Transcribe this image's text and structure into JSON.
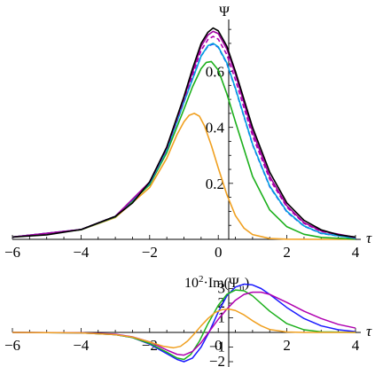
{
  "chart_data": [
    {
      "type": "line",
      "ylabel": "Ψ",
      "xlabel": "τ",
      "xlim": [
        -6,
        4
      ],
      "ylim": [
        0,
        0.78
      ],
      "x_ticks": [
        "−6",
        "−4",
        "−2",
        "0",
        "2",
        "4"
      ],
      "x_tick_values": [
        -6,
        -4,
        -2,
        0,
        2,
        4
      ],
      "y_ticks": [
        "0.2",
        "0.4",
        "0.6"
      ],
      "y_tick_values": [
        0.2,
        0.4,
        0.6
      ],
      "grid": false,
      "series": [
        {
          "color": "#000000",
          "style": "solid",
          "x": [
            -6,
            -5,
            -4,
            -3,
            -2.5,
            -2,
            -1.5,
            -1,
            -0.75,
            -0.5,
            -0.3,
            -0.15,
            0,
            0.25,
            0.5,
            1,
            1.5,
            2,
            2.5,
            3,
            3.5,
            4
          ],
          "y": [
            0.008,
            0.016,
            0.035,
            0.082,
            0.13,
            0.205,
            0.33,
            0.51,
            0.61,
            0.7,
            0.74,
            0.755,
            0.745,
            0.69,
            0.6,
            0.4,
            0.24,
            0.13,
            0.068,
            0.034,
            0.016,
            0.008
          ]
        },
        {
          "color": "#a000a0",
          "style": "solid",
          "x": [
            -6,
            -4,
            -3,
            -2,
            -1.5,
            -1,
            -0.5,
            -0.3,
            -0.15,
            0,
            0.25,
            0.5,
            1,
            1.5,
            2,
            2.5,
            3,
            4
          ],
          "y": [
            0.008,
            0.035,
            0.082,
            0.205,
            0.33,
            0.505,
            0.69,
            0.73,
            0.743,
            0.735,
            0.68,
            0.59,
            0.385,
            0.225,
            0.12,
            0.06,
            0.03,
            0.007
          ]
        },
        {
          "color": "#b000b0",
          "style": "dashed",
          "x": [
            -6,
            -4,
            -3,
            -2,
            -1.5,
            -1,
            -0.5,
            -0.3,
            -0.15,
            0,
            0.25,
            0.5,
            1,
            1.5,
            2,
            2.5,
            3,
            4
          ],
          "y": [
            0.008,
            0.035,
            0.082,
            0.204,
            0.325,
            0.5,
            0.675,
            0.714,
            0.725,
            0.715,
            0.66,
            0.57,
            0.37,
            0.215,
            0.115,
            0.057,
            0.028,
            0.006
          ]
        },
        {
          "color": "#00a0e0",
          "style": "solid",
          "x": [
            -6,
            -4,
            -3,
            -2,
            -1.5,
            -1,
            -0.5,
            -0.3,
            -0.15,
            0,
            0.25,
            0.5,
            1,
            1.5,
            2,
            2.5,
            3,
            4
          ],
          "y": [
            0.008,
            0.035,
            0.082,
            0.2,
            0.32,
            0.49,
            0.655,
            0.692,
            0.7,
            0.688,
            0.63,
            0.54,
            0.34,
            0.19,
            0.1,
            0.048,
            0.022,
            0.004
          ]
        },
        {
          "color": "#1a1aff",
          "style": "dashed",
          "x": [
            -6,
            -4,
            -3,
            -2,
            -1.5,
            -1,
            -0.5,
            -0.3,
            -0.15,
            0,
            0.25,
            0.5,
            1,
            1.5,
            2,
            2.5,
            3,
            4
          ],
          "y": [
            0.008,
            0.035,
            0.082,
            0.2,
            0.32,
            0.49,
            0.655,
            0.69,
            0.698,
            0.686,
            0.628,
            0.538,
            0.338,
            0.188,
            0.098,
            0.047,
            0.021,
            0.004
          ]
        },
        {
          "color": "#1cb01c",
          "style": "solid",
          "x": [
            -6,
            -4,
            -3,
            -2,
            -1.5,
            -1,
            -0.75,
            -0.5,
            -0.35,
            -0.2,
            0,
            0.25,
            0.5,
            1,
            1.5,
            2,
            2.5,
            3,
            4
          ],
          "y": [
            0.008,
            0.034,
            0.08,
            0.195,
            0.31,
            0.465,
            0.545,
            0.61,
            0.632,
            0.635,
            0.605,
            0.52,
            0.42,
            0.225,
            0.105,
            0.045,
            0.018,
            0.007,
            0.001
          ]
        },
        {
          "color": "#f0a020",
          "style": "solid",
          "x": [
            -6,
            -4,
            -3,
            -2,
            -1.5,
            -1.2,
            -1,
            -0.85,
            -0.7,
            -0.55,
            -0.4,
            -0.2,
            0,
            0.25,
            0.5,
            0.75,
            1,
            1.5,
            2,
            3,
            4
          ],
          "y": [
            0.008,
            0.034,
            0.078,
            0.185,
            0.29,
            0.375,
            0.42,
            0.443,
            0.45,
            0.44,
            0.405,
            0.335,
            0.255,
            0.16,
            0.085,
            0.04,
            0.017,
            0.003,
            0.0005,
            0,
            0
          ]
        }
      ]
    },
    {
      "type": "line",
      "ylabel_parts": {
        "a": "10",
        "b": "2",
        "c": "·Im(Ψ",
        "d": "ii",
        "e": ")"
      },
      "xlabel": "τ",
      "xlim": [
        -6,
        4
      ],
      "ylim": [
        -2.5,
        3.6
      ],
      "x_ticks": [
        "−6",
        "−4",
        "−2",
        "0",
        "2",
        "4"
      ],
      "x_tick_values": [
        -6,
        -4,
        -2,
        0,
        2,
        4
      ],
      "y_ticks": [
        "3",
        "2",
        "1",
        "−1",
        "−2"
      ],
      "y_tick_values": [
        3,
        2,
        1,
        -1,
        -2
      ],
      "grid": false,
      "series": [
        {
          "color": "#1a1aff",
          "style": "solid",
          "x": [
            -6,
            -4,
            -3,
            -2.5,
            -2,
            -1.5,
            -1.2,
            -1,
            -0.75,
            -0.5,
            -0.25,
            0,
            0.25,
            0.5,
            0.75,
            1,
            1.25,
            1.5,
            2,
            2.5,
            3,
            3.5,
            4
          ],
          "y": [
            0,
            -0.03,
            -0.15,
            -0.35,
            -0.8,
            -1.45,
            -1.85,
            -2.0,
            -1.75,
            -1.0,
            0.1,
            1.4,
            2.5,
            3.1,
            3.3,
            3.25,
            3.0,
            2.6,
            1.7,
            0.95,
            0.45,
            0.18,
            0.05
          ]
        },
        {
          "color": "#1cb01c",
          "style": "solid",
          "x": [
            -6,
            -4,
            -3,
            -2.5,
            -2,
            -1.5,
            -1.2,
            -1,
            -0.8,
            -0.55,
            -0.3,
            0,
            0.25,
            0.5,
            0.75,
            1,
            1.5,
            2,
            2.5,
            3,
            4
          ],
          "y": [
            0,
            -0.03,
            -0.15,
            -0.35,
            -0.75,
            -1.35,
            -1.75,
            -1.85,
            -1.5,
            -0.6,
            0.6,
            1.85,
            2.6,
            2.9,
            2.85,
            2.5,
            1.45,
            0.6,
            0.18,
            0.04,
            0
          ]
        },
        {
          "color": "#b000b0",
          "style": "solid",
          "x": [
            -6,
            -4,
            -3,
            -2.5,
            -2,
            -1.5,
            -1.2,
            -1,
            -0.75,
            -0.5,
            -0.25,
            0,
            0.25,
            0.5,
            0.75,
            1,
            1.25,
            1.5,
            2,
            2.5,
            3,
            3.5,
            4
          ],
          "y": [
            0,
            -0.02,
            -0.12,
            -0.3,
            -0.65,
            -1.2,
            -1.5,
            -1.55,
            -1.3,
            -0.7,
            0.1,
            0.9,
            1.6,
            2.2,
            2.6,
            2.75,
            2.75,
            2.6,
            2.05,
            1.45,
            0.95,
            0.55,
            0.3
          ]
        },
        {
          "color": "#f0a020",
          "style": "solid",
          "x": [
            -6,
            -4,
            -3,
            -2.5,
            -2,
            -1.6,
            -1.3,
            -1.1,
            -0.9,
            -0.7,
            -0.5,
            -0.3,
            -0.1,
            0.1,
            0.3,
            0.5,
            0.75,
            1,
            1.25,
            1.5,
            2,
            2.5,
            3,
            4
          ],
          "y": [
            0,
            -0.03,
            -0.15,
            -0.32,
            -0.65,
            -0.95,
            -1.05,
            -0.95,
            -0.6,
            -0.1,
            0.45,
            0.95,
            1.35,
            1.55,
            1.6,
            1.5,
            1.2,
            0.8,
            0.45,
            0.2,
            0.03,
            0,
            0,
            0
          ]
        }
      ]
    }
  ]
}
